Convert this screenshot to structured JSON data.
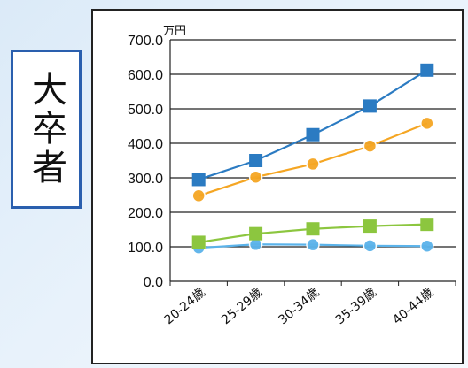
{
  "side_label": "大卒者",
  "chart_data": {
    "type": "line",
    "unit_label": "万円",
    "categories": [
      "20-24歳",
      "25-29歳",
      "30-34歳",
      "35-39歳",
      "40-44歳"
    ],
    "ylim": [
      0,
      700
    ],
    "yticks": [
      "0.0",
      "100.0",
      "200.0",
      "300.0",
      "400.0",
      "500.0",
      "600.0",
      "700.0"
    ],
    "grid": true,
    "series": [
      {
        "color": "#2b7bc2",
        "marker": "square",
        "values": [
          295,
          350,
          425,
          508,
          612
        ]
      },
      {
        "color": "#f5a623",
        "marker": "circle",
        "values": [
          248,
          302,
          340,
          392,
          458
        ]
      },
      {
        "color": "#8cc63f",
        "marker": "square",
        "values": [
          113,
          138,
          152,
          160,
          165
        ]
      },
      {
        "color": "#5bb3ea",
        "marker": "circle",
        "values": [
          97,
          107,
          106,
          103,
          102
        ]
      }
    ]
  }
}
